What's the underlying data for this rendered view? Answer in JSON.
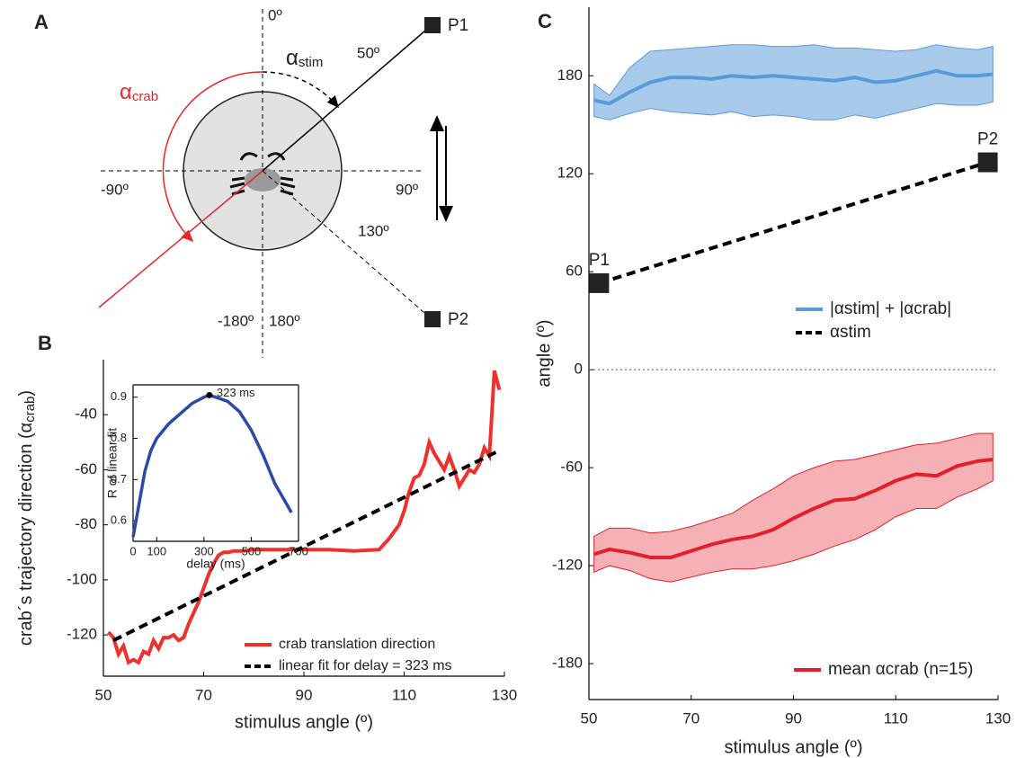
{
  "diagram": {
    "panel_label": "A",
    "labels": {
      "north": "0º",
      "p1_angle": "50º",
      "p1": "P1",
      "west": "-90º",
      "east": "90º",
      "p2_angle": "130º",
      "south_left": "-180º",
      "south_right": "180º",
      "p2": "P2"
    },
    "alpha_stim": {
      "symbol": "α",
      "subscript": "stim"
    },
    "alpha_crab": {
      "symbol": "α",
      "subscript": "crab"
    }
  },
  "chart_data": [
    {
      "type": "line",
      "panel_label": "B",
      "xlabel": "stimulus angle (º)",
      "ylabel": {
        "text": "crab´s trajectory direction (α",
        "subscript": "crab",
        "end": ")"
      },
      "xlim": [
        50,
        130
      ],
      "ylim": [
        -135,
        -20
      ],
      "xticks": [
        50,
        70,
        90,
        110,
        130
      ],
      "yticks": [
        -120,
        -100,
        -80,
        -60,
        -40
      ],
      "series": [
        {
          "name": "crab translation direction",
          "color": "#f0302a",
          "style": "solid",
          "x": [
            51,
            52,
            53,
            54,
            55,
            56,
            57,
            58,
            59,
            60,
            61,
            62,
            63,
            64,
            65,
            66,
            67,
            68,
            69,
            70,
            71,
            72,
            73,
            74,
            75,
            76,
            77,
            78,
            80,
            85,
            90,
            95,
            100,
            105,
            107,
            109,
            110,
            111,
            112,
            113,
            114,
            115,
            116,
            117,
            118,
            119,
            120,
            121,
            122,
            123,
            124,
            125,
            126,
            127,
            128,
            129
          ],
          "values": [
            -119,
            -121,
            -127,
            -124,
            -130,
            -129,
            -130,
            -126,
            -127,
            -122,
            -125,
            -121,
            -121,
            -120,
            -122,
            -121,
            -116,
            -112,
            -108,
            -103,
            -98,
            -94,
            -91,
            -90,
            -90,
            -89.5,
            -89.5,
            -89.5,
            -89,
            -89,
            -89,
            -89,
            -89.5,
            -89,
            -85,
            -80,
            -75,
            -68,
            -63,
            -62,
            -58,
            -50,
            -54,
            -57,
            -60,
            -55,
            -60,
            -66,
            -63,
            -60,
            -61,
            -58,
            -52,
            -55,
            -24,
            -31
          ]
        },
        {
          "name": "linear fit for delay = 323 ms",
          "color": "#000000",
          "style": "dashed",
          "x": [
            52,
            129
          ],
          "values": [
            -122,
            -53
          ]
        }
      ]
    },
    {
      "type": "line",
      "xlabel": "delay (ms)",
      "ylabel": "R of linear fit",
      "xlim": [
        0,
        700
      ],
      "ylim": [
        0.55,
        0.93
      ],
      "xticks": [
        0,
        100,
        300,
        500,
        700
      ],
      "yticks": [
        0.6,
        0.7,
        0.8,
        0.9
      ],
      "series": [
        {
          "color": "#2a4aa8",
          "style": "solid",
          "x": [
            0,
            25,
            50,
            75,
            100,
            150,
            200,
            250,
            300,
            323,
            350,
            400,
            450,
            500,
            550,
            600,
            650,
            670
          ],
          "values": [
            0.56,
            0.64,
            0.72,
            0.77,
            0.8,
            0.835,
            0.86,
            0.885,
            0.9,
            0.905,
            0.9,
            0.89,
            0.865,
            0.82,
            0.76,
            0.69,
            0.64,
            0.62
          ]
        }
      ],
      "annotations": [
        {
          "x": 323,
          "y": 0.905,
          "label": "323 ms"
        }
      ]
    },
    {
      "type": "line",
      "panel_label": "C",
      "xlabel": "stimulus angle (º)",
      "ylabel": "angle (º)",
      "xlim": [
        50,
        130
      ],
      "ylim": [
        -202,
        222
      ],
      "xticks": [
        50,
        70,
        90,
        110,
        130
      ],
      "yticks": [
        -180,
        -120,
        -60,
        0,
        60,
        120,
        180
      ],
      "zero_line": true,
      "series": [
        {
          "name": "|αstim| + |αcrab|",
          "color": "#5b9bd5",
          "band_color": "#a8cbeb",
          "style": "solid",
          "x": [
            51,
            54,
            58,
            62,
            66,
            70,
            74,
            78,
            82,
            86,
            90,
            94,
            98,
            102,
            106,
            110,
            114,
            118,
            122,
            126,
            129
          ],
          "values": [
            165,
            163,
            170,
            176,
            179,
            179,
            178,
            180,
            179,
            180,
            179,
            178,
            177,
            179,
            176,
            177,
            180,
            183,
            180,
            180,
            181
          ],
          "upper": [
            175,
            168,
            185,
            195,
            196,
            197,
            198,
            199,
            199,
            198,
            198,
            199,
            197,
            197,
            196,
            195,
            196,
            199,
            197,
            196,
            198
          ],
          "lower": [
            155,
            153,
            157,
            160,
            158,
            157,
            156,
            158,
            155,
            156,
            155,
            153,
            153,
            156,
            154,
            157,
            160,
            163,
            162,
            162,
            164
          ]
        },
        {
          "name": "αstim",
          "color": "#000000",
          "style": "dashed",
          "x": [
            52,
            128
          ],
          "values": [
            53,
            127
          ],
          "point_labels": [
            "P1",
            "P2"
          ]
        },
        {
          "name": "mean αcrab (n=15)",
          "color": "#e3202a",
          "band_color": "#f5b1b5",
          "style": "solid",
          "x": [
            51,
            54,
            58,
            62,
            66,
            70,
            74,
            78,
            82,
            86,
            90,
            94,
            98,
            102,
            106,
            110,
            114,
            118,
            122,
            126,
            129
          ],
          "values": [
            -113,
            -110,
            -112,
            -115,
            -115,
            -111,
            -107,
            -104,
            -102,
            -98,
            -91,
            -85,
            -80,
            -79,
            -74,
            -68,
            -64,
            -65,
            -59,
            -56,
            -55
          ],
          "upper": [
            -102,
            -97,
            -97,
            -100,
            -99,
            -96,
            -92,
            -88,
            -80,
            -73,
            -65,
            -60,
            -56,
            -55,
            -52,
            -49,
            -46,
            -45,
            -42,
            -39,
            -39
          ],
          "lower": [
            -124,
            -120,
            -123,
            -128,
            -130,
            -127,
            -124,
            -122,
            -122,
            -120,
            -117,
            -113,
            -108,
            -104,
            -98,
            -90,
            -85,
            -85,
            -78,
            -73,
            -68
          ]
        }
      ]
    }
  ]
}
